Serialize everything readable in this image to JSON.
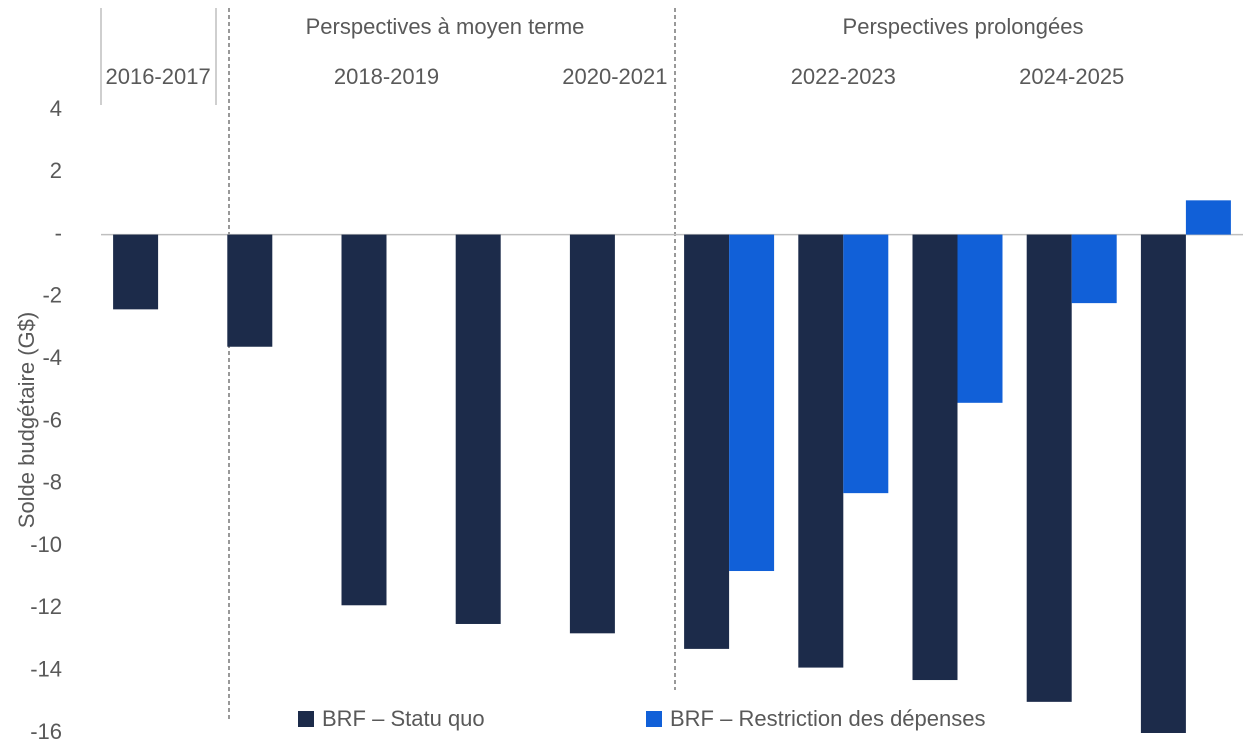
{
  "chart_data": {
    "type": "bar",
    "y_label": "Solde budgétaire (G$)",
    "annotations": [
      "Perspectives à moyen terme",
      "Perspectives prolongées"
    ],
    "categories": [
      "2016-2017",
      null,
      "2018-2019",
      null,
      "2020-2021",
      null,
      "2022-2023",
      null,
      "2024-2025",
      null
    ],
    "series": [
      {
        "name": "BRF – Statu quo",
        "color": "#1c2b4a",
        "values": [
          -2.4,
          -3.6,
          -11.9,
          -12.5,
          -12.8,
          -13.3,
          -13.9,
          -14.3,
          -15.0,
          -16.0
        ]
      },
      {
        "name": "BRF – Restriction des dépenses",
        "color": "#1160d8",
        "values": [
          null,
          null,
          null,
          null,
          null,
          -10.8,
          -8.3,
          -5.4,
          -2.2,
          1.1
        ]
      }
    ],
    "ylim": [
      -16,
      4
    ],
    "yticks": [
      4,
      2,
      {
        "value": 0,
        "label": "-"
      },
      -2,
      -4,
      -6,
      -8,
      -10,
      -12,
      -14,
      -16
    ],
    "legend": "bottom"
  }
}
